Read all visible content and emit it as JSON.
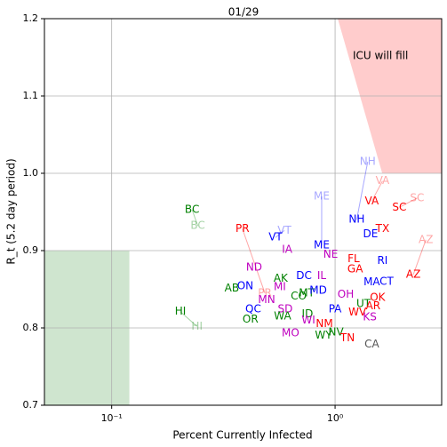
{
  "chart_data": {
    "type": "scatter",
    "title": "01/29",
    "x_label": "Percent Currently Infected",
    "y_label": "R_t (5.2 day period)",
    "xscale": "log",
    "xlim": [
      0.05,
      3
    ],
    "ylim": [
      0.7,
      1.2
    ],
    "xticks": [
      {
        "value": 0.1,
        "label": "10⁻¹"
      },
      {
        "value": 1,
        "label": "10⁰"
      }
    ],
    "yticks": [
      0.7,
      0.8,
      0.9,
      {
        "value": 1,
        "label": "1.0"
      },
      1.1,
      1.2
    ],
    "grid": true,
    "regions": [
      {
        "color": "#ffcccc",
        "x": [
          1.028,
          3,
          3,
          1.626
        ],
        "y": [
          1.2,
          1.2,
          1.0,
          1.0
        ]
      },
      {
        "color": "#cfe5cf",
        "x": [
          0.05,
          0.12,
          0.12,
          0.05
        ],
        "y": [
          0.7,
          0.7,
          0.9,
          0.9
        ]
      }
    ],
    "annotation": {
      "text": "ICU will fill",
      "x": 1.597,
      "y": 1.152
    },
    "labels": [
      "BC",
      "HI",
      "PR",
      "VT",
      "ND",
      "ON",
      "AB",
      "QC",
      "OR",
      "MN",
      "MI",
      "AK",
      "IA",
      "SD",
      "WA",
      "MO",
      "CO",
      "MT",
      "DC",
      "IL",
      "MD",
      "ME",
      "NE",
      "ID",
      "WI",
      "NM",
      "WY",
      "NV",
      "PA",
      "OH",
      "TN",
      "WV",
      "KS",
      "UT",
      "CA",
      "MA",
      "CT",
      "OK",
      "AR",
      "RI",
      "FL",
      "GA",
      "NH",
      "DE",
      "TX",
      "VA",
      "SC",
      "AZ"
    ],
    "colors": [
      "#008000",
      "#008000",
      "#ff0000",
      "#0000ff",
      "#bf00bf",
      "#0000ff",
      "#008000",
      "#0000ff",
      "#008000",
      "#bf00bf",
      "#bf00bf",
      "#008000",
      "#bf00bf",
      "#bf00bf",
      "#008000",
      "#bf00bf",
      "#008000",
      "#008000",
      "#0000ff",
      "#bf00bf",
      "#0000ff",
      "#0000ff",
      "#bf00bf",
      "#008000",
      "#bf00bf",
      "#ff0000",
      "#008000",
      "#008000",
      "#0000ff",
      "#bf00bf",
      "#ff0000",
      "#ff0000",
      "#bf00bf",
      "#008000",
      "#555555",
      "#0000ff",
      "#0000ff",
      "#ff0000",
      "#ff0000",
      "#0000ff",
      "#ff0000",
      "#ff0000",
      "#0000ff",
      "#0000ff",
      "#ff0000",
      "#ff0000",
      "#ff0000",
      "#ff0000"
    ],
    "x": [
      0.229,
      0.203,
      0.385,
      0.541,
      0.434,
      0.396,
      0.345,
      0.43,
      0.418,
      0.494,
      0.566,
      0.571,
      0.61,
      0.598,
      0.582,
      0.632,
      0.687,
      0.746,
      0.726,
      0.871,
      0.84,
      0.871,
      0.955,
      0.752,
      0.76,
      0.896,
      0.887,
      1.01,
      1.0,
      1.116,
      1.137,
      1.258,
      1.43,
      1.34,
      1.46,
      1.46,
      1.7,
      1.55,
      1.48,
      1.63,
      1.21,
      1.23,
      1.25,
      1.44,
      1.63,
      1.46,
      1.94,
      2.24
    ],
    "values": [
      0.953,
      0.821,
      0.928,
      0.917,
      0.878,
      0.854,
      0.851,
      0.824,
      0.811,
      0.836,
      0.853,
      0.864,
      0.901,
      0.824,
      0.815,
      0.793,
      0.841,
      0.845,
      0.867,
      0.867,
      0.848,
      0.907,
      0.895,
      0.818,
      0.81,
      0.805,
      0.79,
      0.794,
      0.824,
      0.843,
      0.787,
      0.82,
      0.814,
      0.831,
      0.779,
      0.859,
      0.86,
      0.839,
      0.828,
      0.887,
      0.889,
      0.876,
      0.94,
      0.921,
      0.928,
      0.964,
      0.956,
      0.869
    ],
    "prev_x": [
      0.243,
      0.241,
      0.485,
      0.593,
      null,
      null,
      null,
      null,
      null,
      null,
      null,
      null,
      null,
      null,
      null,
      null,
      null,
      null,
      null,
      null,
      null,
      0.871,
      null,
      null,
      null,
      null,
      null,
      null,
      null,
      null,
      null,
      null,
      null,
      null,
      null,
      null,
      null,
      null,
      null,
      null,
      null,
      null,
      1.4,
      null,
      null,
      1.63,
      2.33,
      2.55
    ],
    "prev_values": [
      0.932,
      0.802,
      0.845,
      0.926,
      null,
      null,
      null,
      null,
      null,
      null,
      null,
      null,
      null,
      null,
      null,
      null,
      null,
      null,
      null,
      null,
      null,
      0.97,
      null,
      null,
      null,
      null,
      null,
      null,
      null,
      null,
      null,
      null,
      null,
      null,
      null,
      null,
      null,
      null,
      null,
      null,
      null,
      null,
      1.015,
      null,
      null,
      0.99,
      0.968,
      0.914
    ]
  }
}
